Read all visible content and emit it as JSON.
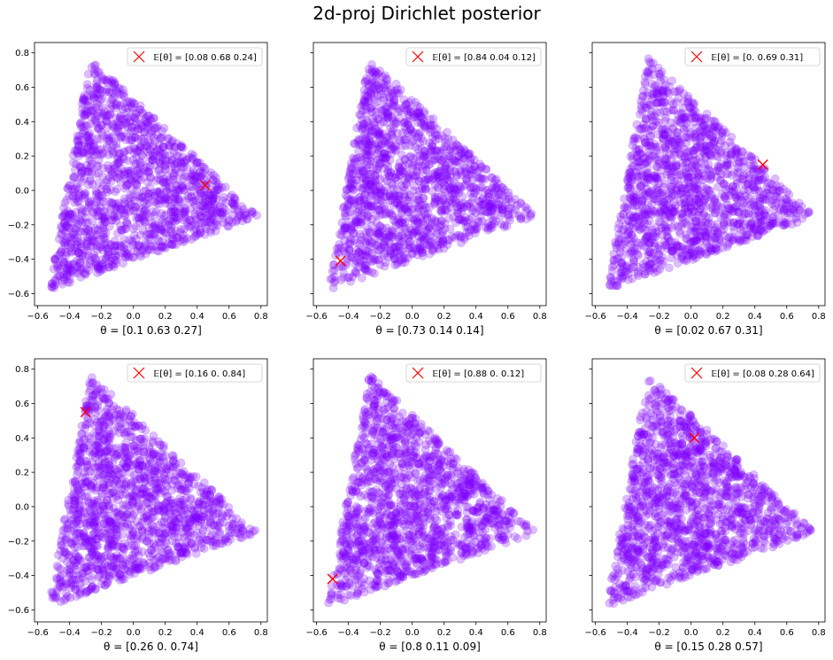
{
  "figure": {
    "title": "2d-proj Dirichlet posterior"
  },
  "chart_data": [
    {
      "type": "scatter",
      "xlabel": "θ = [0.1  0.63 0.27]",
      "legend": {
        "label": "𝔼[θ] = [0.08 0.68 0.24]",
        "position": "top-right"
      },
      "marker": {
        "x": 0.45,
        "y": 0.03
      },
      "xlim": [
        -0.62,
        0.84
      ],
      "ylim": [
        -0.67,
        0.86
      ],
      "xticks": [
        -0.6,
        -0.4,
        -0.2,
        0.0,
        0.2,
        0.4,
        0.6,
        0.8
      ],
      "yticks": [
        -0.6,
        -0.4,
        -0.2,
        0.0,
        0.2,
        0.4,
        0.6,
        0.8
      ],
      "show_ytick_labels": true,
      "triangle": [
        [
          -0.27,
          0.77
        ],
        [
          0.78,
          -0.15
        ],
        [
          -0.53,
          -0.58
        ]
      ]
    },
    {
      "type": "scatter",
      "xlabel": "θ = [0.73 0.14 0.14]",
      "legend": {
        "label": "𝔼[θ] = [0.84 0.04 0.12]",
        "position": "top-right"
      },
      "marker": {
        "x": -0.45,
        "y": -0.41
      },
      "xlim": [
        -0.62,
        0.84
      ],
      "ylim": [
        -0.67,
        0.86
      ],
      "xticks": [
        -0.6,
        -0.4,
        -0.2,
        0.0,
        0.2,
        0.4,
        0.6,
        0.8
      ],
      "yticks": [
        -0.6,
        -0.4,
        -0.2,
        0.0,
        0.2,
        0.4,
        0.6,
        0.8
      ],
      "show_ytick_labels": false,
      "triangle": [
        [
          -0.27,
          0.77
        ],
        [
          0.78,
          -0.15
        ],
        [
          -0.53,
          -0.58
        ]
      ]
    },
    {
      "type": "scatter",
      "xlabel": "θ = [0.02 0.67 0.31]",
      "legend": {
        "label": "𝔼[θ] = [0.   0.69 0.31]",
        "position": "top-right"
      },
      "marker": {
        "x": 0.45,
        "y": 0.15
      },
      "xlim": [
        -0.62,
        0.84
      ],
      "ylim": [
        -0.67,
        0.86
      ],
      "xticks": [
        -0.6,
        -0.4,
        -0.2,
        0.0,
        0.2,
        0.4,
        0.6,
        0.8
      ],
      "yticks": [
        -0.6,
        -0.4,
        -0.2,
        0.0,
        0.2,
        0.4,
        0.6,
        0.8
      ],
      "show_ytick_labels": false,
      "triangle": [
        [
          -0.27,
          0.77
        ],
        [
          0.78,
          -0.15
        ],
        [
          -0.53,
          -0.58
        ]
      ]
    },
    {
      "type": "scatter",
      "xlabel": "θ = [0.26 0.   0.74]",
      "legend": {
        "label": "𝔼[θ] = [0.16 0.   0.84]",
        "position": "top-right"
      },
      "marker": {
        "x": -0.3,
        "y": 0.55
      },
      "xlim": [
        -0.62,
        0.84
      ],
      "ylim": [
        -0.67,
        0.86
      ],
      "xticks": [
        -0.6,
        -0.4,
        -0.2,
        0.0,
        0.2,
        0.4,
        0.6,
        0.8
      ],
      "yticks": [
        -0.6,
        -0.4,
        -0.2,
        0.0,
        0.2,
        0.4,
        0.6,
        0.8
      ],
      "show_ytick_labels": true,
      "triangle": [
        [
          -0.27,
          0.77
        ],
        [
          0.78,
          -0.15
        ],
        [
          -0.53,
          -0.58
        ]
      ]
    },
    {
      "type": "scatter",
      "xlabel": "θ = [0.8  0.11 0.09]",
      "legend": {
        "label": "𝔼[θ] = [0.88 0.   0.12]",
        "position": "top-right"
      },
      "marker": {
        "x": -0.5,
        "y": -0.42
      },
      "xlim": [
        -0.62,
        0.84
      ],
      "ylim": [
        -0.67,
        0.86
      ],
      "xticks": [
        -0.6,
        -0.4,
        -0.2,
        0.0,
        0.2,
        0.4,
        0.6,
        0.8
      ],
      "yticks": [
        -0.6,
        -0.4,
        -0.2,
        0.0,
        0.2,
        0.4,
        0.6,
        0.8
      ],
      "show_ytick_labels": false,
      "triangle": [
        [
          -0.27,
          0.77
        ],
        [
          0.78,
          -0.15
        ],
        [
          -0.53,
          -0.58
        ]
      ]
    },
    {
      "type": "scatter",
      "xlabel": "θ = [0.15 0.28 0.57]",
      "legend": {
        "label": "𝔼[θ] = [0.08 0.28 0.64]",
        "position": "top-right"
      },
      "marker": {
        "x": 0.02,
        "y": 0.4
      },
      "xlim": [
        -0.62,
        0.84
      ],
      "ylim": [
        -0.67,
        0.86
      ],
      "xticks": [
        -0.6,
        -0.4,
        -0.2,
        0.0,
        0.2,
        0.4,
        0.6,
        0.8
      ],
      "yticks": [
        -0.6,
        -0.4,
        -0.2,
        0.0,
        0.2,
        0.4,
        0.6,
        0.8
      ],
      "show_ytick_labels": false,
      "triangle": [
        [
          -0.27,
          0.77
        ],
        [
          0.78,
          -0.15
        ],
        [
          -0.53,
          -0.58
        ]
      ]
    }
  ],
  "style": {
    "point_color": "#7f00ff",
    "marker_color": "#ff0000",
    "axis_color": "#000000"
  }
}
